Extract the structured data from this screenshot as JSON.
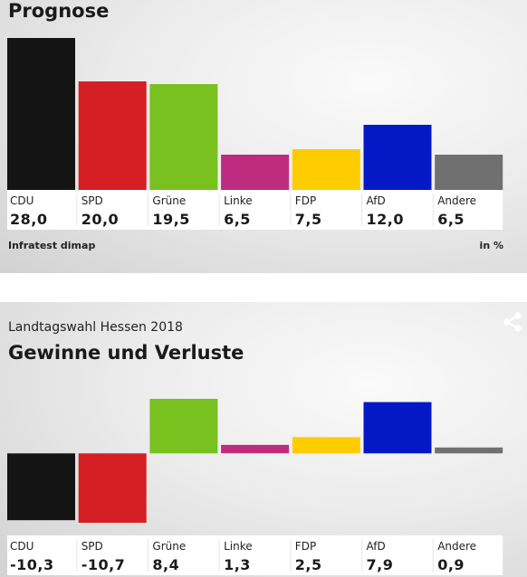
{
  "colors": {
    "CDU": "#141414",
    "SPD": "#d51f24",
    "Grüne": "#78c11f",
    "Linke": "#be2c80",
    "FDP": "#ffcc00",
    "AfD": "#0418c6",
    "Andere": "#707070"
  },
  "icons": {
    "share": "share-icon"
  },
  "chart_data": [
    {
      "type": "bar",
      "title": "Prognose",
      "source": "Infratest dimap",
      "unit": "in %",
      "categories": [
        "CDU",
        "SPD",
        "Grüne",
        "Linke",
        "FDP",
        "AfD",
        "Andere"
      ],
      "values": [
        28.0,
        20.0,
        19.5,
        6.5,
        7.5,
        12.0,
        6.5
      ],
      "value_labels": [
        "28,0",
        "20,0",
        "19,5",
        "6,5",
        "7,5",
        "12,0",
        "6,5"
      ],
      "ylim": [
        0,
        28
      ],
      "grid": false,
      "legend": "none"
    },
    {
      "type": "bar",
      "subtitle": "Landtagswahl Hessen 2018",
      "title": "Gewinne und Verluste",
      "categories": [
        "CDU",
        "SPD",
        "Grüne",
        "Linke",
        "FDP",
        "AfD",
        "Andere"
      ],
      "values": [
        -10.3,
        -10.7,
        8.4,
        1.3,
        2.5,
        7.9,
        0.9
      ],
      "value_labels": [
        "-10,3",
        "-10,7",
        "8,4",
        "1,3",
        "2,5",
        "7,9",
        "0,9"
      ],
      "ylim": [
        -10.7,
        8.4
      ],
      "grid": false,
      "legend": "none"
    }
  ]
}
